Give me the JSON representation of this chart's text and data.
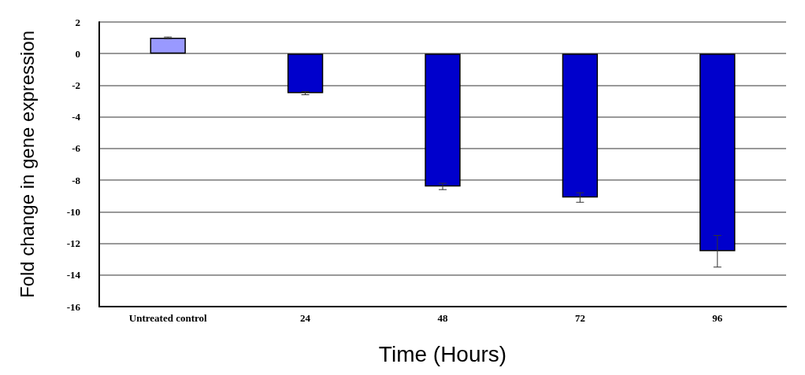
{
  "chart_data": {
    "type": "bar",
    "xlabel": "Time (Hours)",
    "ylabel": "Fold change in gene expression",
    "categories": [
      "Untreated control",
      "24",
      "48",
      "72",
      "96"
    ],
    "values": [
      1.0,
      -2.5,
      -8.4,
      -9.1,
      -12.5
    ],
    "errors": [
      0.05,
      0.1,
      0.2,
      0.3,
      1.0
    ],
    "colors": [
      "#9999ff",
      "#0000cc",
      "#0000cc",
      "#0000cc",
      "#0000cc"
    ],
    "ylim": [
      -16,
      2
    ],
    "yticks": [
      -16,
      -14,
      -12,
      -10,
      -8,
      -6,
      -4,
      -2,
      0,
      2
    ],
    "grid": "y"
  }
}
